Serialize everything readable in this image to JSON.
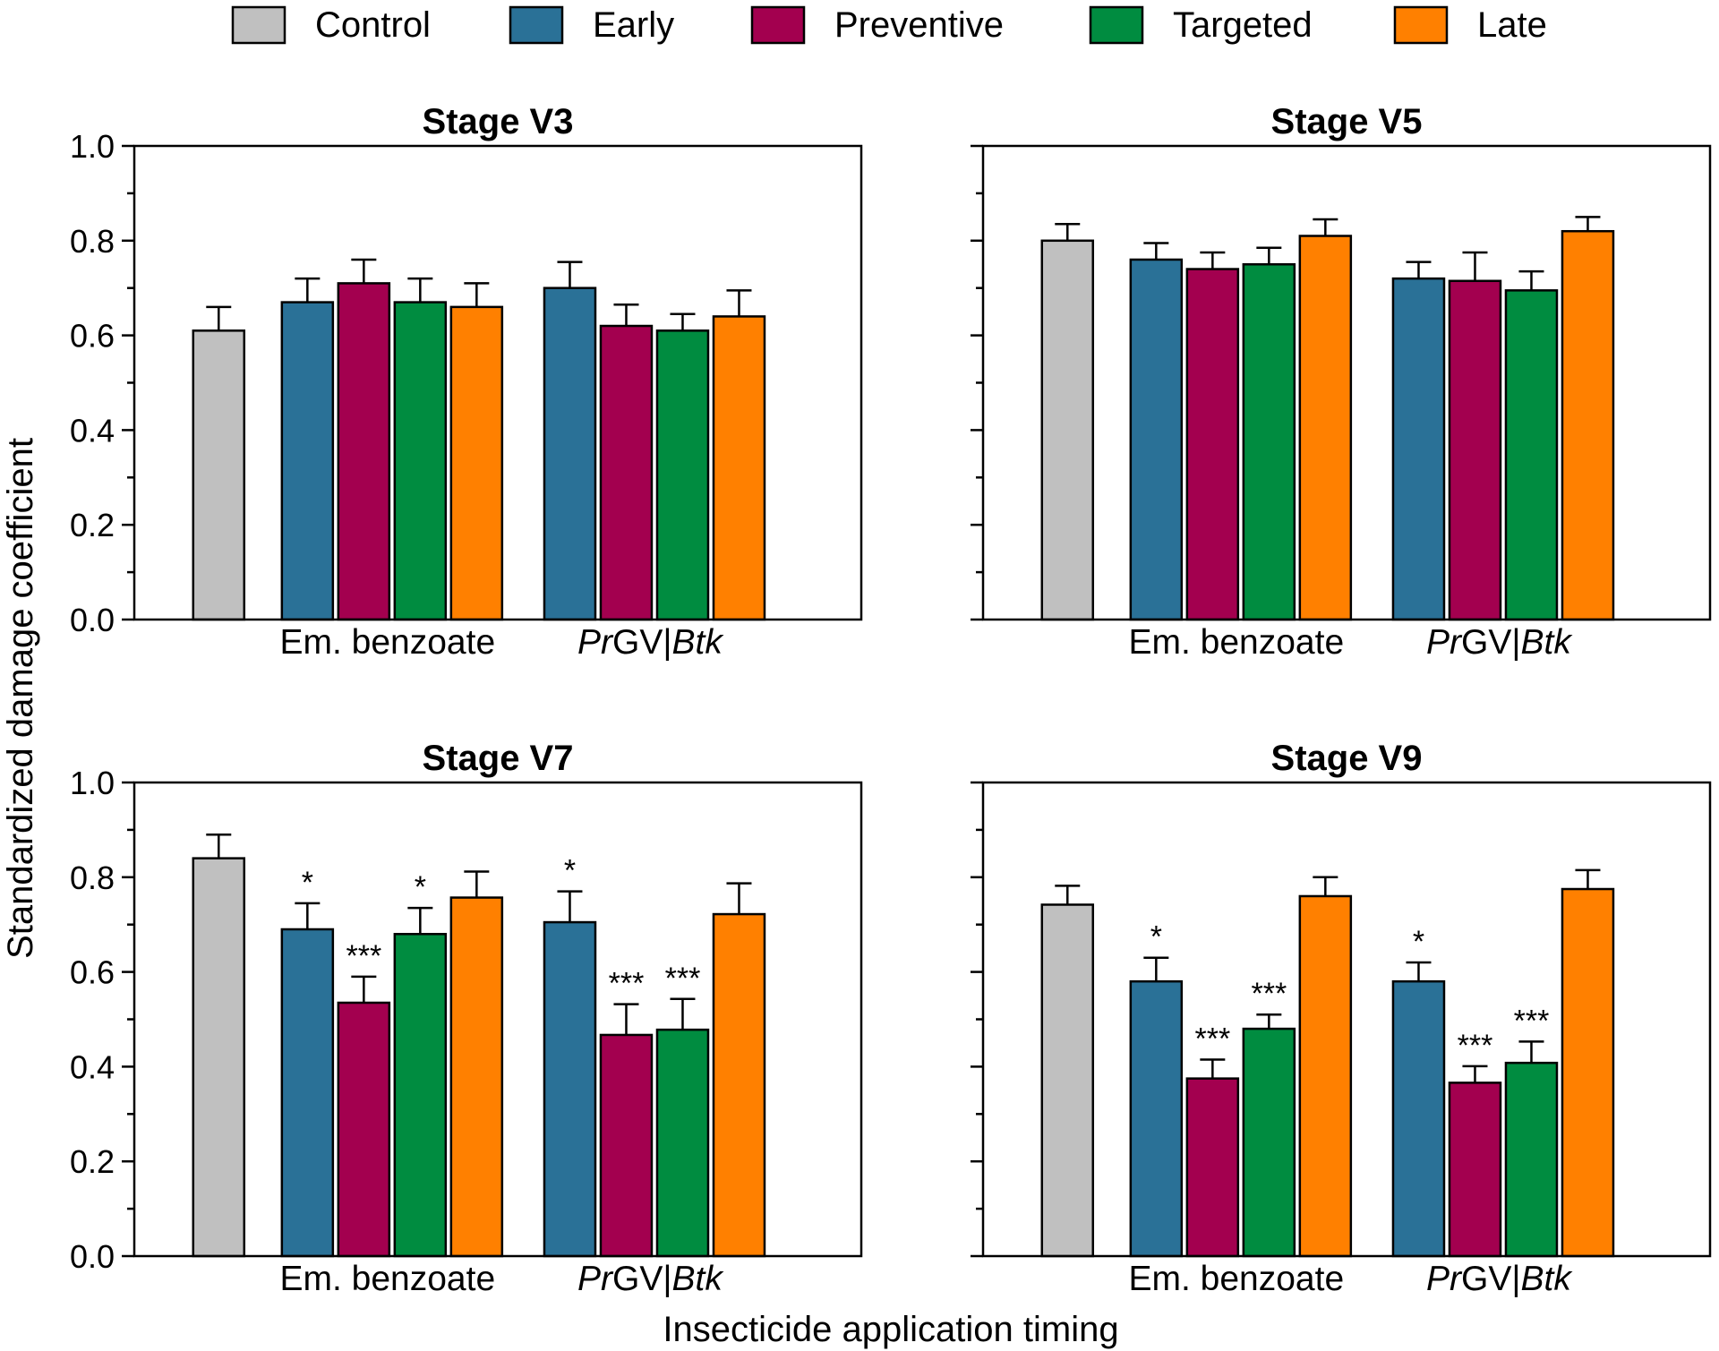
{
  "chart_data": [
    {
      "type": "bar",
      "title": "Stage V3",
      "ylim": [
        0,
        1.0
      ],
      "yticks": [
        "0.0",
        "0.2",
        "0.4",
        "0.6",
        "0.8",
        "1.0"
      ],
      "groups": [
        "Em. benzoate",
        "PrGV|Btk"
      ],
      "control": {
        "value": 0.61,
        "error": 0.05
      },
      "series": [
        {
          "name": "Early",
          "values": [
            0.67,
            0.7
          ],
          "errors": [
            0.05,
            0.055
          ],
          "sig": [
            "",
            ""
          ]
        },
        {
          "name": "Preventive",
          "values": [
            0.71,
            0.62
          ],
          "errors": [
            0.05,
            0.045
          ],
          "sig": [
            "",
            ""
          ]
        },
        {
          "name": "Targeted",
          "values": [
            0.67,
            0.61
          ],
          "errors": [
            0.05,
            0.035
          ],
          "sig": [
            "",
            ""
          ]
        },
        {
          "name": "Late",
          "values": [
            0.66,
            0.64
          ],
          "errors": [
            0.05,
            0.055
          ],
          "sig": [
            "",
            ""
          ]
        }
      ]
    },
    {
      "type": "bar",
      "title": "Stage V5",
      "ylim": [
        0,
        1.0
      ],
      "yticks": [
        "",
        "",
        "",
        "",
        "",
        ""
      ],
      "groups": [
        "Em. benzoate",
        "PrGV|Btk"
      ],
      "control": {
        "value": 0.8,
        "error": 0.035
      },
      "series": [
        {
          "name": "Early",
          "values": [
            0.76,
            0.72
          ],
          "errors": [
            0.035,
            0.035
          ],
          "sig": [
            "",
            ""
          ]
        },
        {
          "name": "Preventive",
          "values": [
            0.74,
            0.715
          ],
          "errors": [
            0.035,
            0.06
          ],
          "sig": [
            "",
            ""
          ]
        },
        {
          "name": "Targeted",
          "values": [
            0.75,
            0.695
          ],
          "errors": [
            0.035,
            0.04
          ],
          "sig": [
            "",
            ""
          ]
        },
        {
          "name": "Late",
          "values": [
            0.81,
            0.82
          ],
          "errors": [
            0.035,
            0.03
          ],
          "sig": [
            "",
            ""
          ]
        }
      ]
    },
    {
      "type": "bar",
      "title": "Stage V7",
      "ylim": [
        0,
        1.0
      ],
      "yticks": [
        "0.0",
        "0.2",
        "0.4",
        "0.6",
        "0.8",
        "1.0"
      ],
      "groups": [
        "Em. benzoate",
        "PrGV|Btk"
      ],
      "control": {
        "value": 0.84,
        "error": 0.05
      },
      "series": [
        {
          "name": "Early",
          "values": [
            0.69,
            0.705
          ],
          "errors": [
            0.055,
            0.065
          ],
          "sig": [
            "*",
            "*"
          ]
        },
        {
          "name": "Preventive",
          "values": [
            0.535,
            0.467
          ],
          "errors": [
            0.055,
            0.065
          ],
          "sig": [
            "***",
            "***"
          ]
        },
        {
          "name": "Targeted",
          "values": [
            0.68,
            0.478
          ],
          "errors": [
            0.055,
            0.065
          ],
          "sig": [
            "*",
            "***"
          ]
        },
        {
          "name": "Late",
          "values": [
            0.757,
            0.722
          ],
          "errors": [
            0.055,
            0.065
          ],
          "sig": [
            "",
            ""
          ]
        }
      ]
    },
    {
      "type": "bar",
      "title": "Stage V9",
      "ylim": [
        0,
        1.0
      ],
      "yticks": [
        "",
        "",
        "",
        "",
        "",
        ""
      ],
      "groups": [
        "Em. benzoate",
        "PrGV|Btk"
      ],
      "control": {
        "value": 0.742,
        "error": 0.04
      },
      "series": [
        {
          "name": "Early",
          "values": [
            0.58,
            0.58
          ],
          "errors": [
            0.05,
            0.04
          ],
          "sig": [
            "*",
            "*"
          ]
        },
        {
          "name": "Preventive",
          "values": [
            0.375,
            0.366
          ],
          "errors": [
            0.04,
            0.035
          ],
          "sig": [
            "***",
            "***"
          ]
        },
        {
          "name": "Targeted",
          "values": [
            0.48,
            0.408
          ],
          "errors": [
            0.03,
            0.045
          ],
          "sig": [
            "***",
            "***"
          ]
        },
        {
          "name": "Late",
          "values": [
            0.76,
            0.775
          ],
          "errors": [
            0.04,
            0.04
          ],
          "sig": [
            "",
            ""
          ]
        }
      ]
    }
  ],
  "legend": [
    {
      "name": "Control",
      "color": "#c0c0c0"
    },
    {
      "name": "Early",
      "color": "#2a7197"
    },
    {
      "name": "Preventive",
      "color": "#a3004f"
    },
    {
      "name": "Targeted",
      "color": "#008c40"
    },
    {
      "name": "Late",
      "color": "#ff8000"
    }
  ],
  "ylabel": "Standardized damage coefficient",
  "xlabel": "Insecticide application timing"
}
